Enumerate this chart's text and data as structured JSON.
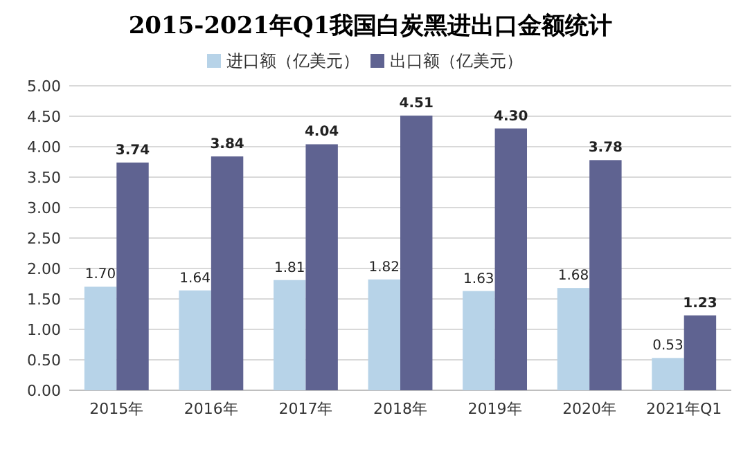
{
  "chart_data": {
    "type": "bar",
    "title": "2015-2021年Q1我国白炭黑进出口金额统计",
    "categories": [
      "2015年",
      "2016年",
      "2017年",
      "2018年",
      "2019年",
      "2020年",
      "2021年Q1"
    ],
    "series": [
      {
        "name": "进口额（亿美元）",
        "color": "#b7d3e8",
        "values": [
          1.7,
          1.64,
          1.81,
          1.82,
          1.63,
          1.68,
          0.53
        ],
        "value_labels": [
          "1.70",
          "1.64",
          "1.81",
          "1.82",
          "1.63",
          "1.68",
          "0.53"
        ]
      },
      {
        "name": "出口额（亿美元）",
        "color": "#5f6391",
        "values": [
          3.74,
          3.84,
          4.04,
          4.51,
          4.3,
          3.78,
          1.23
        ],
        "value_labels": [
          "3.74",
          "3.84",
          "4.04",
          "4.51",
          "4.30",
          "3.78",
          "1.23"
        ]
      }
    ],
    "ylim": [
      0,
      5
    ],
    "yticks": [
      {
        "value": 0,
        "label": "0.00"
      },
      {
        "value": 0.5,
        "label": "0.50"
      },
      {
        "value": 1,
        "label": "1.00"
      },
      {
        "value": 1.5,
        "label": "1.50"
      },
      {
        "value": 2,
        "label": "2.00"
      },
      {
        "value": 2.5,
        "label": "2.50"
      },
      {
        "value": 3,
        "label": "3.00"
      },
      {
        "value": 3.5,
        "label": "3.50"
      },
      {
        "value": 4,
        "label": "4.00"
      },
      {
        "value": 4.5,
        "label": "4.50"
      },
      {
        "value": 5,
        "label": "5.00"
      }
    ],
    "grid": "y",
    "legend": "top"
  }
}
